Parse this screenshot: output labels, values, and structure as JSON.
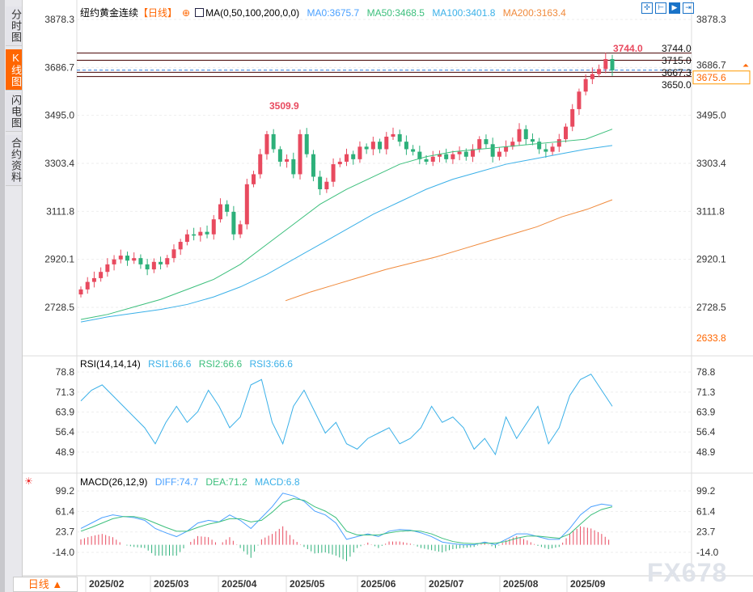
{
  "tabs": [
    {
      "label": "分时图",
      "active": false
    },
    {
      "label": "K线图",
      "active": true
    },
    {
      "label": "闪电图",
      "active": false
    },
    {
      "label": "合约资料",
      "active": false
    }
  ],
  "header": {
    "title": "纽约黄金连续",
    "period_tag": "【日线】",
    "ma_label": "MA(0,50,100,200,0,0)",
    "ma0": "MA0:3675.7",
    "ma50": "MA50:3468.5",
    "ma100": "MA100:3401.8",
    "ma200": "MA200:3163.4"
  },
  "toolbar": [
    {
      "icon": "crosshair-icon"
    },
    {
      "icon": "range-icon"
    },
    {
      "icon": "play-forward-icon",
      "active": true
    },
    {
      "icon": "exit-right-icon"
    }
  ],
  "colors": {
    "up": "#e84a5f",
    "down": "#2db07a",
    "ma0": "#4aa0ff",
    "ma50": "#3cbf7c",
    "ma100": "#3ab0e8",
    "ma200": "#f08a3c",
    "accent": "#ff6600"
  },
  "price_axis": {
    "ticks": [
      "3878.3",
      "3686.7",
      "3495.0",
      "3303.4",
      "3111.8",
      "2920.1",
      "2728.5"
    ],
    "right_extra": "2633.8",
    "current": "3675.6",
    "min": 2728.5,
    "max": 3878.3
  },
  "annotations": {
    "high_label": "3509.9",
    "high2_label": "3744.0",
    "levels": [
      "3744.0",
      "3715.0",
      "3667.3",
      "3650.0"
    ]
  },
  "chart_data": {
    "type": "candlestick",
    "closes": [
      2800,
      2830,
      2845,
      2870,
      2900,
      2920,
      2935,
      2915,
      2925,
      2900,
      2880,
      2910,
      2900,
      2925,
      2960,
      2990,
      3020,
      3015,
      3030,
      3020,
      3080,
      3140,
      3110,
      3020,
      3060,
      3220,
      3260,
      3340,
      3420,
      3360,
      3310,
      3320,
      3260,
      3420,
      3340,
      3250,
      3200,
      3230,
      3300,
      3310,
      3340,
      3320,
      3370,
      3360,
      3390,
      3360,
      3410,
      3420,
      3390,
      3360,
      3350,
      3320,
      3310,
      3330,
      3340,
      3320,
      3340,
      3350,
      3330,
      3360,
      3400,
      3380,
      3330,
      3350,
      3370,
      3390,
      3440,
      3400,
      3390,
      3360,
      3350,
      3370,
      3400,
      3450,
      3520,
      3590,
      3640,
      3660,
      3680,
      3720,
      3675
    ],
    "ma50": [
      2680,
      2700,
      2730,
      2760,
      2800,
      2840,
      2900,
      2980,
      3060,
      3140,
      3200,
      3250,
      3300,
      3330,
      3350,
      3360,
      3370,
      3380,
      3390,
      3400,
      3440
    ],
    "ma100": [
      2670,
      2690,
      2705,
      2720,
      2740,
      2770,
      2810,
      2860,
      2920,
      2980,
      3040,
      3100,
      3150,
      3200,
      3240,
      3270,
      3300,
      3320,
      3340,
      3360,
      3375
    ],
    "ma200": [
      2755,
      2790,
      2820,
      2850,
      2880,
      2905,
      2930,
      2960,
      2990,
      3020,
      3050,
      3090,
      3120,
      3158
    ]
  },
  "rsi": {
    "label": "RSI(14,14,14)",
    "rsi1": "RSI1:66.6",
    "rsi2": "RSI2:66.6",
    "rsi3": "RSI3:66.6",
    "ticks": [
      "78.8",
      "71.3",
      "63.9",
      "56.4",
      "48.9"
    ],
    "min": 48.9,
    "max": 78.8,
    "values": [
      68,
      72,
      74,
      70,
      66,
      62,
      58,
      52,
      60,
      66,
      60,
      64,
      72,
      66,
      58,
      62,
      74,
      76,
      60,
      52,
      66,
      72,
      64,
      56,
      60,
      52,
      50,
      54,
      56,
      58,
      52,
      54,
      58,
      66,
      60,
      62,
      58,
      50,
      54,
      48,
      62,
      54,
      60,
      66,
      52,
      58,
      70,
      76,
      78,
      72,
      66
    ]
  },
  "macd": {
    "label": "MACD(26,12,9)",
    "diff": "DIFF:74.7",
    "dea": "DEA:71.2",
    "macd": "MACD:6.8",
    "ticks": [
      "99.2",
      "61.4",
      "23.7",
      "-14.0"
    ],
    "min": -14.0,
    "max": 99.2,
    "diff_values": [
      30,
      40,
      50,
      55,
      52,
      50,
      45,
      30,
      22,
      15,
      25,
      40,
      45,
      42,
      55,
      45,
      30,
      50,
      70,
      95,
      90,
      80,
      62,
      55,
      40,
      10,
      15,
      20,
      15,
      25,
      28,
      27,
      22,
      15,
      5,
      2,
      0,
      0,
      5,
      0,
      10,
      20,
      20,
      15,
      10,
      10,
      30,
      55,
      70,
      75,
      72
    ],
    "dea_values": [
      25,
      32,
      40,
      48,
      52,
      52,
      48,
      40,
      32,
      25,
      25,
      32,
      38,
      42,
      48,
      48,
      42,
      45,
      60,
      78,
      85,
      82,
      70,
      62,
      50,
      25,
      18,
      18,
      18,
      22,
      25,
      26,
      25,
      20,
      12,
      6,
      3,
      2,
      3,
      3,
      6,
      12,
      16,
      16,
      14,
      12,
      20,
      38,
      55,
      65,
      70
    ]
  },
  "x_axis": [
    "2025/02",
    "2025/03",
    "2025/04",
    "2025/05",
    "2025/06",
    "2025/07",
    "2025/08",
    "2025/09"
  ],
  "period_selector": "日线 ▲",
  "watermark": "FX678"
}
